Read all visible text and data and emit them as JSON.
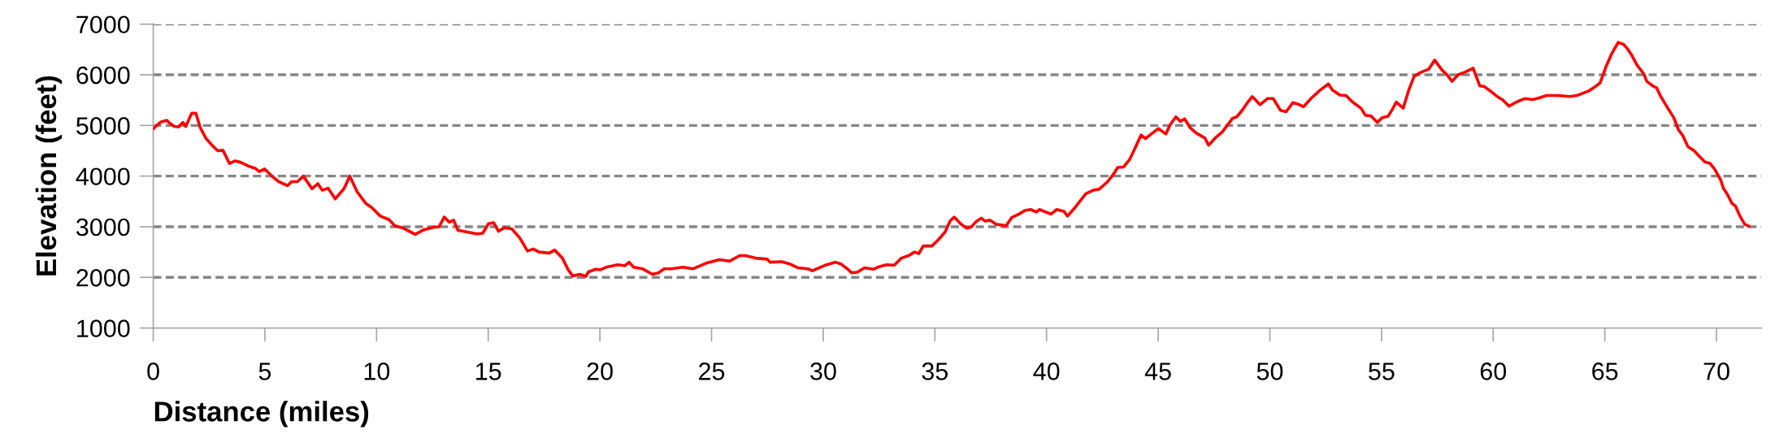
{
  "chart_data": {
    "type": "line",
    "xlabel": "Distance (miles)",
    "ylabel": "Elevation (feet)",
    "xlim": [
      0,
      72
    ],
    "xticks": [
      0,
      5,
      10,
      15,
      20,
      25,
      30,
      35,
      40,
      45,
      50,
      55,
      60,
      65,
      70
    ],
    "ylim": [
      1000,
      7000
    ],
    "yticks": [
      1000,
      2000,
      3000,
      4000,
      5000,
      6000,
      7000
    ],
    "grid": "y",
    "series": [
      {
        "color": "#ff0000",
        "x": [
          0,
          0.16,
          0.35,
          0.61,
          0.75,
          0.94,
          1.13,
          1.33,
          1.46,
          1.72,
          1.91,
          2.11,
          2.37,
          2.63,
          2.89,
          3.12,
          3.41,
          3.67,
          3.93,
          4.25,
          4.58,
          4.75,
          4.99,
          5.29,
          5.62,
          6.01,
          6.2,
          6.46,
          6.72,
          7.11,
          7.37,
          7.57,
          7.83,
          8.15,
          8.54,
          8.8,
          9.13,
          9.52,
          9.78,
          10.17,
          10.56,
          10.82,
          11.21,
          11.73,
          12.12,
          12.58,
          12.8,
          13.03,
          13.25,
          13.45,
          13.64,
          14.1,
          14.49,
          14.75,
          15.01,
          15.24,
          15.46,
          15.72,
          16.05,
          16.41,
          16.76,
          17.02,
          17.28,
          17.74,
          17.97,
          18.32,
          18.58,
          18.78,
          19.1,
          19.37,
          19.49,
          19.82,
          20.02,
          20.28,
          20.8,
          21.12,
          21.31,
          21.51,
          21.9,
          22.36,
          22.62,
          22.88,
          23.2,
          23.72,
          24.18,
          24.76,
          25.35,
          25.8,
          26.26,
          26.52,
          26.97,
          27.49,
          27.62,
          28.14,
          28.53,
          28.86,
          29.31,
          29.51,
          30.09,
          30.55,
          30.81,
          31.13,
          31.27,
          31.52,
          31.85,
          32.24,
          32.5,
          32.83,
          33.18,
          33.5,
          33.83,
          34.09,
          34.28,
          34.48,
          34.87,
          35.13,
          35.45,
          35.69,
          35.87,
          36.17,
          36.43,
          36.62,
          36.82,
          37.08,
          37.25,
          37.47,
          37.73,
          38.19,
          38.44,
          38.77,
          39.03,
          39.29,
          39.55,
          39.68,
          40.2,
          40.46,
          40.79,
          40.94,
          41.24,
          41.76,
          42.09,
          42.35,
          42.74,
          43.0,
          43.19,
          43.45,
          43.71,
          43.91,
          44.23,
          44.43,
          44.69,
          45.01,
          45.34,
          45.53,
          45.79,
          45.99,
          46.18,
          46.44,
          46.7,
          47.09,
          47.26,
          47.55,
          47.87,
          48.33,
          48.52,
          48.78,
          48.98,
          49.21,
          49.56,
          49.89,
          50.15,
          50.47,
          50.73,
          51.03,
          51.32,
          51.51,
          51.84,
          52.23,
          52.62,
          52.8,
          53.14,
          53.41,
          53.68,
          54.08,
          54.28,
          54.52,
          54.82,
          55.02,
          55.29,
          55.49,
          55.66,
          55.97,
          56.23,
          56.46,
          56.77,
          57.11,
          57.38,
          57.68,
          57.95,
          58.16,
          58.43,
          58.73,
          59.1,
          59.4,
          59.6,
          59.87,
          60.21,
          60.41,
          60.71,
          61.08,
          61.42,
          61.76,
          62.03,
          62.39,
          62.9,
          63.44,
          63.74,
          63.98,
          64.32,
          64.52,
          64.79,
          65.06,
          65.3,
          65.6,
          65.84,
          66.0,
          66.2,
          66.43,
          66.74,
          66.88,
          67.15,
          67.32,
          67.48,
          67.82,
          68.09,
          68.29,
          68.49,
          68.72,
          68.97,
          69.21,
          69.48,
          69.71,
          69.91,
          70.18,
          70.31,
          70.51,
          70.69,
          70.85,
          71.05,
          71.26,
          71.46
        ],
        "values": [
          4930,
          5000,
          5070,
          5100,
          5040,
          4980,
          4970,
          5060,
          4980,
          5240,
          5240,
          4950,
          4740,
          4610,
          4500,
          4510,
          4250,
          4300,
          4270,
          4200,
          4150,
          4090,
          4140,
          4010,
          3890,
          3810,
          3890,
          3890,
          4000,
          3750,
          3850,
          3720,
          3760,
          3550,
          3750,
          4000,
          3690,
          3460,
          3380,
          3210,
          3140,
          3020,
          2970,
          2850,
          2940,
          2990,
          3000,
          3190,
          3090,
          3130,
          2930,
          2890,
          2860,
          2870,
          3060,
          3080,
          2910,
          2980,
          2960,
          2780,
          2520,
          2560,
          2500,
          2480,
          2540,
          2380,
          2150,
          2030,
          2060,
          2020,
          2110,
          2160,
          2150,
          2200,
          2250,
          2230,
          2300,
          2200,
          2170,
          2060,
          2090,
          2170,
          2170,
          2200,
          2170,
          2280,
          2350,
          2320,
          2430,
          2430,
          2380,
          2360,
          2300,
          2310,
          2260,
          2190,
          2170,
          2130,
          2240,
          2300,
          2260,
          2150,
          2090,
          2100,
          2190,
          2160,
          2210,
          2250,
          2240,
          2380,
          2430,
          2500,
          2470,
          2620,
          2620,
          2730,
          2890,
          3120,
          3190,
          3050,
          2970,
          2990,
          3090,
          3170,
          3110,
          3130,
          3050,
          3020,
          3180,
          3250,
          3320,
          3340,
          3290,
          3340,
          3250,
          3340,
          3300,
          3210,
          3360,
          3650,
          3720,
          3740,
          3890,
          4040,
          4170,
          4180,
          4320,
          4500,
          4810,
          4740,
          4830,
          4940,
          4830,
          5010,
          5170,
          5080,
          5130,
          4950,
          4850,
          4750,
          4610,
          4750,
          4870,
          5140,
          5170,
          5310,
          5440,
          5570,
          5410,
          5530,
          5530,
          5300,
          5270,
          5450,
          5410,
          5370,
          5530,
          5690,
          5820,
          5700,
          5600,
          5590,
          5470,
          5340,
          5200,
          5190,
          5060,
          5150,
          5180,
          5320,
          5460,
          5340,
          5710,
          5970,
          6050,
          6110,
          6290,
          6110,
          5990,
          5870,
          6000,
          6050,
          6130,
          5780,
          5770,
          5680,
          5560,
          5510,
          5380,
          5470,
          5530,
          5510,
          5540,
          5590,
          5590,
          5570,
          5590,
          5630,
          5690,
          5750,
          5840,
          6170,
          6410,
          6640,
          6600,
          6520,
          6390,
          6200,
          6020,
          5870,
          5780,
          5740,
          5590,
          5340,
          5150,
          4920,
          4800,
          4580,
          4510,
          4400,
          4280,
          4250,
          4140,
          3930,
          3760,
          3620,
          3460,
          3410,
          3210,
          3050,
          3010
        ]
      }
    ]
  }
}
